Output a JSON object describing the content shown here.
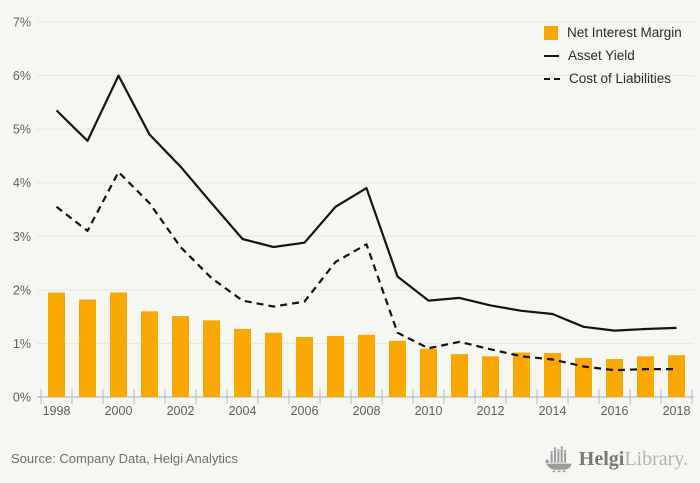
{
  "chart_data": {
    "type": "bar",
    "title": "",
    "xlabel": "",
    "ylabel": "",
    "ylim": [
      0,
      7
    ],
    "ytick_step": 1,
    "ytick_suffix": "%",
    "xtick_label_every": 2,
    "grid": true,
    "legend_position": "top-right",
    "categories": [
      "1998",
      "1999",
      "2000",
      "2001",
      "2002",
      "2003",
      "2004",
      "2005",
      "2006",
      "2007",
      "2008",
      "2009",
      "2010",
      "2011",
      "2012",
      "2013",
      "2014",
      "2015",
      "2016",
      "2017",
      "2018"
    ],
    "series": [
      {
        "name": "Net Interest Margin",
        "type": "bar",
        "color": "#f8a800",
        "values": [
          1.95,
          1.82,
          1.95,
          1.6,
          1.51,
          1.43,
          1.27,
          1.2,
          1.12,
          1.14,
          1.16,
          1.05,
          0.9,
          0.8,
          0.76,
          0.83,
          0.82,
          0.73,
          0.71,
          0.76,
          0.78
        ]
      },
      {
        "name": "Asset Yield",
        "type": "line",
        "dash": "solid",
        "color": "#141414",
        "values": [
          5.35,
          4.78,
          6.0,
          4.9,
          4.3,
          3.62,
          2.95,
          2.8,
          2.88,
          3.55,
          3.9,
          2.25,
          1.8,
          1.85,
          1.71,
          1.61,
          1.55,
          1.31,
          1.24,
          1.27,
          1.29
        ]
      },
      {
        "name": "Cost of Liabilities",
        "type": "line",
        "dash": "dashed",
        "color": "#141414",
        "values": [
          3.55,
          3.1,
          4.2,
          3.62,
          2.8,
          2.22,
          1.8,
          1.69,
          1.78,
          2.52,
          2.85,
          1.2,
          0.91,
          1.03,
          0.89,
          0.76,
          0.7,
          0.57,
          0.5,
          0.52,
          0.52
        ]
      }
    ]
  },
  "legend": {
    "items": [
      {
        "label": "Net Interest Margin"
      },
      {
        "label": "Asset Yield"
      },
      {
        "label": "Cost of Liabilities"
      }
    ]
  },
  "footer": {
    "source": "Source: Company Data, Helgi Analytics",
    "logo_bold": "Helgi",
    "logo_light": "Library."
  },
  "colors": {
    "background": "#f6f6f3",
    "bar": "#f8a800",
    "line": "#141414",
    "grid": "#e6e6e1",
    "axis": "#b0bdd4",
    "tick_label": "#606060"
  }
}
